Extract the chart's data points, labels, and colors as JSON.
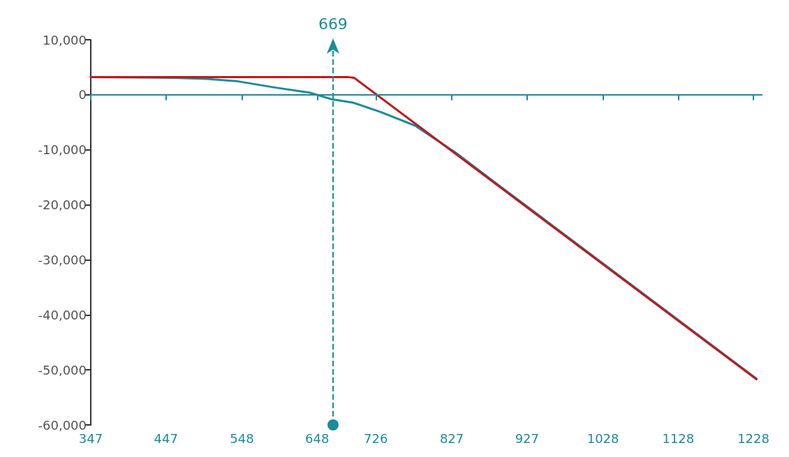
{
  "chart_data": {
    "type": "line",
    "xlim": [
      347,
      1240
    ],
    "xticks": [
      347,
      447,
      548,
      648,
      726,
      827,
      927,
      1028,
      1128,
      1228
    ],
    "ylim": [
      -60000,
      10000
    ],
    "yticks": [
      {
        "value": -60000,
        "label": "-60,000"
      },
      {
        "value": -50000,
        "label": "-50,000"
      },
      {
        "value": -40000,
        "label": "-40,000"
      },
      {
        "value": -30000,
        "label": "-30,000"
      },
      {
        "value": -20000,
        "label": "-20,000"
      },
      {
        "value": -10000,
        "label": "-10,000"
      },
      {
        "value": 0,
        "label": "0"
      },
      {
        "value": 10000,
        "label": "10,000"
      }
    ],
    "series": [
      {
        "color": "#1a8c9c",
        "x": [
          347,
          455,
          500,
          540,
          593,
          638,
          667,
          695,
          732,
          778,
          833,
          888,
          933,
          961,
          1232
        ],
        "values": [
          3200,
          3100,
          2900,
          2500,
          1300,
          400,
          -800,
          -1400,
          -3100,
          -5600,
          -10600,
          -16300,
          -20900,
          -23800,
          -51600
        ]
      },
      {
        "color": "#c0181f",
        "x": [
          347,
          690,
          697,
          1232
        ],
        "values": [
          3200,
          3200,
          3100,
          -51700
        ]
      }
    ],
    "ref_lines": [
      {
        "axis": "x",
        "value": 669,
        "label": "669",
        "color": "#1a8c9c",
        "line_style": "dashed"
      },
      {
        "axis": "y",
        "value": 0,
        "color": "#1a8c9c",
        "line_style": "solid"
      }
    ],
    "grid": false,
    "marker": "none",
    "line_style": "solid"
  }
}
